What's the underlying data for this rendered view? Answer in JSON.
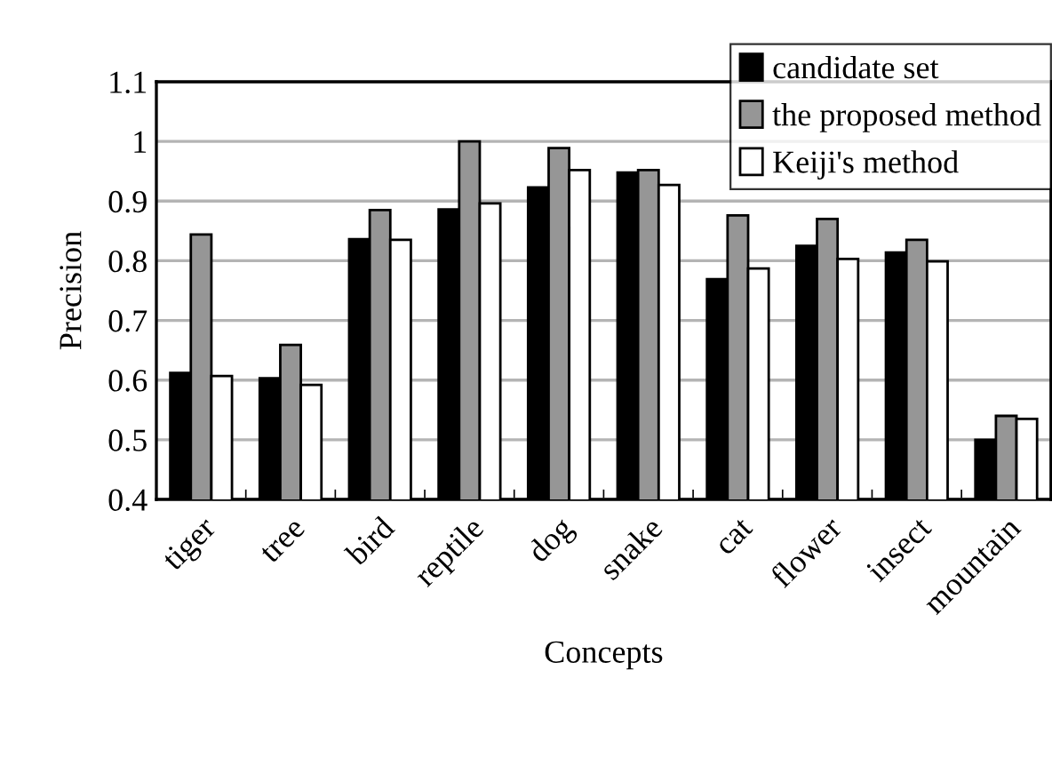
{
  "chart_data": {
    "type": "bar",
    "xlabel": "Concepts",
    "ylabel": "Precision",
    "categories": [
      "tiger",
      "tree",
      "bird",
      "reptile",
      "dog",
      "snake",
      "cat",
      "flower",
      "insect",
      "mountain"
    ],
    "series": [
      {
        "name": "candidate set",
        "color": "#000000",
        "values": [
          0.612,
          0.603,
          0.836,
          0.886,
          0.923,
          0.948,
          0.769,
          0.825,
          0.814,
          0.5
        ]
      },
      {
        "name": "the proposed method",
        "color": "#969696",
        "values": [
          0.844,
          0.659,
          0.885,
          1.0,
          0.989,
          0.952,
          0.876,
          0.87,
          0.835,
          0.54
        ]
      },
      {
        "name": "Keiji's method",
        "color": "#ffffff",
        "values": [
          0.607,
          0.592,
          0.835,
          0.896,
          0.952,
          0.927,
          0.787,
          0.803,
          0.799,
          0.535
        ]
      }
    ],
    "ylim": [
      0.4,
      1.1
    ],
    "yticks": [
      0.4,
      0.5,
      0.6,
      0.7,
      0.8,
      0.9,
      1,
      1.1
    ],
    "grid": "y",
    "legend": "top right"
  }
}
